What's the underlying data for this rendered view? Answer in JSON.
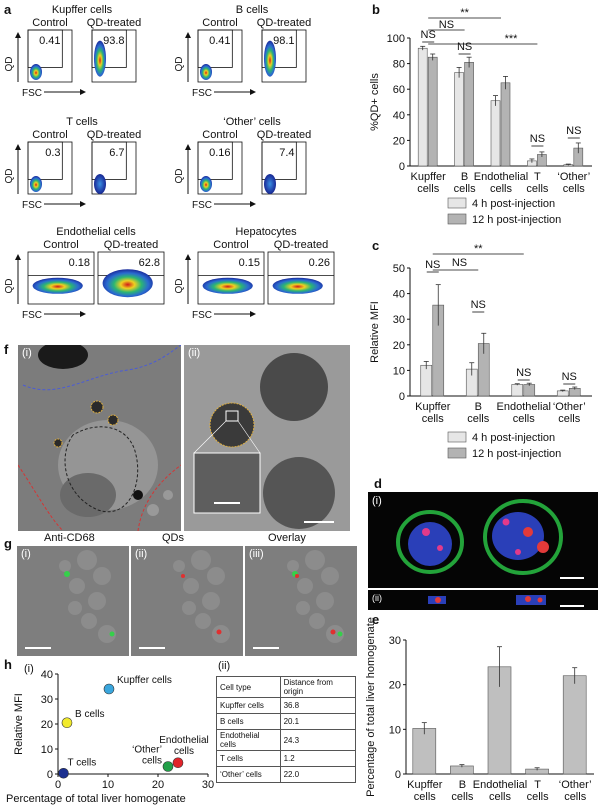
{
  "panel_labels": {
    "a": "a",
    "b": "b",
    "c": "c",
    "d": "d",
    "e": "e",
    "f": "f",
    "g": "g",
    "h": "h"
  },
  "flow": {
    "ylabel": "QD",
    "xlabel": "FSC",
    "control_label": "Control",
    "treated_label": "QD-treated",
    "groups": [
      {
        "title": "Kupffer cells",
        "control": "0.41",
        "treated": "93.8"
      },
      {
        "title": "B cells",
        "control": "0.41",
        "treated": "98.1"
      },
      {
        "title": "T cells",
        "control": "0.3",
        "treated": "6.7"
      },
      {
        "title": "‘Other’ cells",
        "control": "0.16",
        "treated": "7.4"
      },
      {
        "title": "Endothelial cells",
        "control": "0.18",
        "treated": "62.8"
      },
      {
        "title": "Hepatocytes",
        "control": "0.15",
        "treated": "0.26"
      }
    ]
  },
  "sig": {
    "ns": "NS",
    "two": "**",
    "three": "***"
  },
  "micro": {
    "f_i": "(i)",
    "f_ii": "(ii)",
    "d_i": "(i)",
    "d_ii": "(ii)",
    "g_titles": [
      "Anti-CD68",
      "QDs",
      "Overlay"
    ],
    "g_labels": [
      "(i)",
      "(ii)",
      "(iii)"
    ]
  },
  "h_table": {
    "label": "(ii)",
    "headers": [
      "Cell type",
      "Distance from origin"
    ],
    "rows": [
      [
        "Kupffer cells",
        "36.8"
      ],
      [
        "B cells",
        "20.1"
      ],
      [
        "Endothelial cells",
        "24.3"
      ],
      [
        "T cells",
        "1.2"
      ],
      [
        "‘Other’ cells",
        "22.0"
      ]
    ]
  },
  "chart_data": [
    {
      "id": "b",
      "type": "bar",
      "ylabel": "%QD+ cells",
      "ylim": [
        0,
        100
      ],
      "yticks": [
        0,
        20,
        40,
        60,
        80,
        100
      ],
      "categories": [
        "Kupffer cells",
        "B cells",
        "Endothelial cells",
        "T cells",
        "‘Other’ cells"
      ],
      "series": [
        {
          "name": "4 h post-injection",
          "color": "#e6e6e6",
          "values": [
            92,
            73,
            51,
            4,
            1
          ],
          "errors": [
            1.5,
            4,
            4,
            1.5,
            0.5
          ]
        },
        {
          "name": "12 h post-injection",
          "color": "#b3b3b3",
          "values": [
            85,
            81,
            65,
            9,
            14
          ],
          "errors": [
            2.5,
            4,
            5,
            2,
            4
          ]
        }
      ]
    },
    {
      "id": "c",
      "type": "bar",
      "ylabel": "Relative MFI",
      "ylim": [
        0,
        50
      ],
      "yticks": [
        0,
        10,
        20,
        30,
        40,
        50
      ],
      "categories": [
        "Kupffer cells",
        "B cells",
        "Endothelial cells",
        "‘Other’ cells"
      ],
      "series": [
        {
          "name": "4 h post-injection",
          "color": "#e6e6e6",
          "values": [
            12,
            10.5,
            4.5,
            2
          ],
          "errors": [
            1.5,
            2.5,
            0.3,
            0.3
          ]
        },
        {
          "name": "12 h post-injection",
          "color": "#b3b3b3",
          "values": [
            35.5,
            20.5,
            4.5,
            3
          ],
          "errors": [
            8,
            4,
            0.5,
            0.5
          ]
        }
      ]
    },
    {
      "id": "e",
      "type": "bar",
      "ylabel": "Percentage of total liver homogenate",
      "ylim": [
        0,
        30
      ],
      "yticks": [
        0,
        10,
        20,
        30
      ],
      "categories": [
        "Kupffer cells",
        "B cells",
        "Endothelial cells",
        "T cells",
        "‘Other’ cells"
      ],
      "series": [
        {
          "name": "",
          "color": "#bfbfbf",
          "values": [
            10.2,
            1.8,
            24,
            1.1,
            22
          ],
          "errors": [
            1.3,
            0.3,
            4.5,
            0.3,
            1.8
          ]
        }
      ]
    },
    {
      "id": "h",
      "type": "scatter",
      "xlabel": "Percentage of total liver homogenate",
      "ylabel": "Relative MFI",
      "xlim": [
        0,
        30
      ],
      "ylim": [
        0,
        40
      ],
      "xticks": [
        0,
        10,
        20,
        30
      ],
      "yticks": [
        0,
        10,
        20,
        30,
        40
      ],
      "points": [
        {
          "label": "Kupffer cells",
          "x": 10.2,
          "y": 34,
          "color": "#3aa6dd"
        },
        {
          "label": "B cells",
          "x": 1.8,
          "y": 20.5,
          "color": "#f1ea2c"
        },
        {
          "label": "Endothelial cells",
          "x": 24,
          "y": 4.5,
          "color": "#e2242a"
        },
        {
          "label": "T cells",
          "x": 1.1,
          "y": 0.3,
          "color": "#1b2f8f"
        },
        {
          "label": "‘Other’ cells",
          "x": 22,
          "y": 3,
          "color": "#22a049"
        }
      ]
    }
  ]
}
